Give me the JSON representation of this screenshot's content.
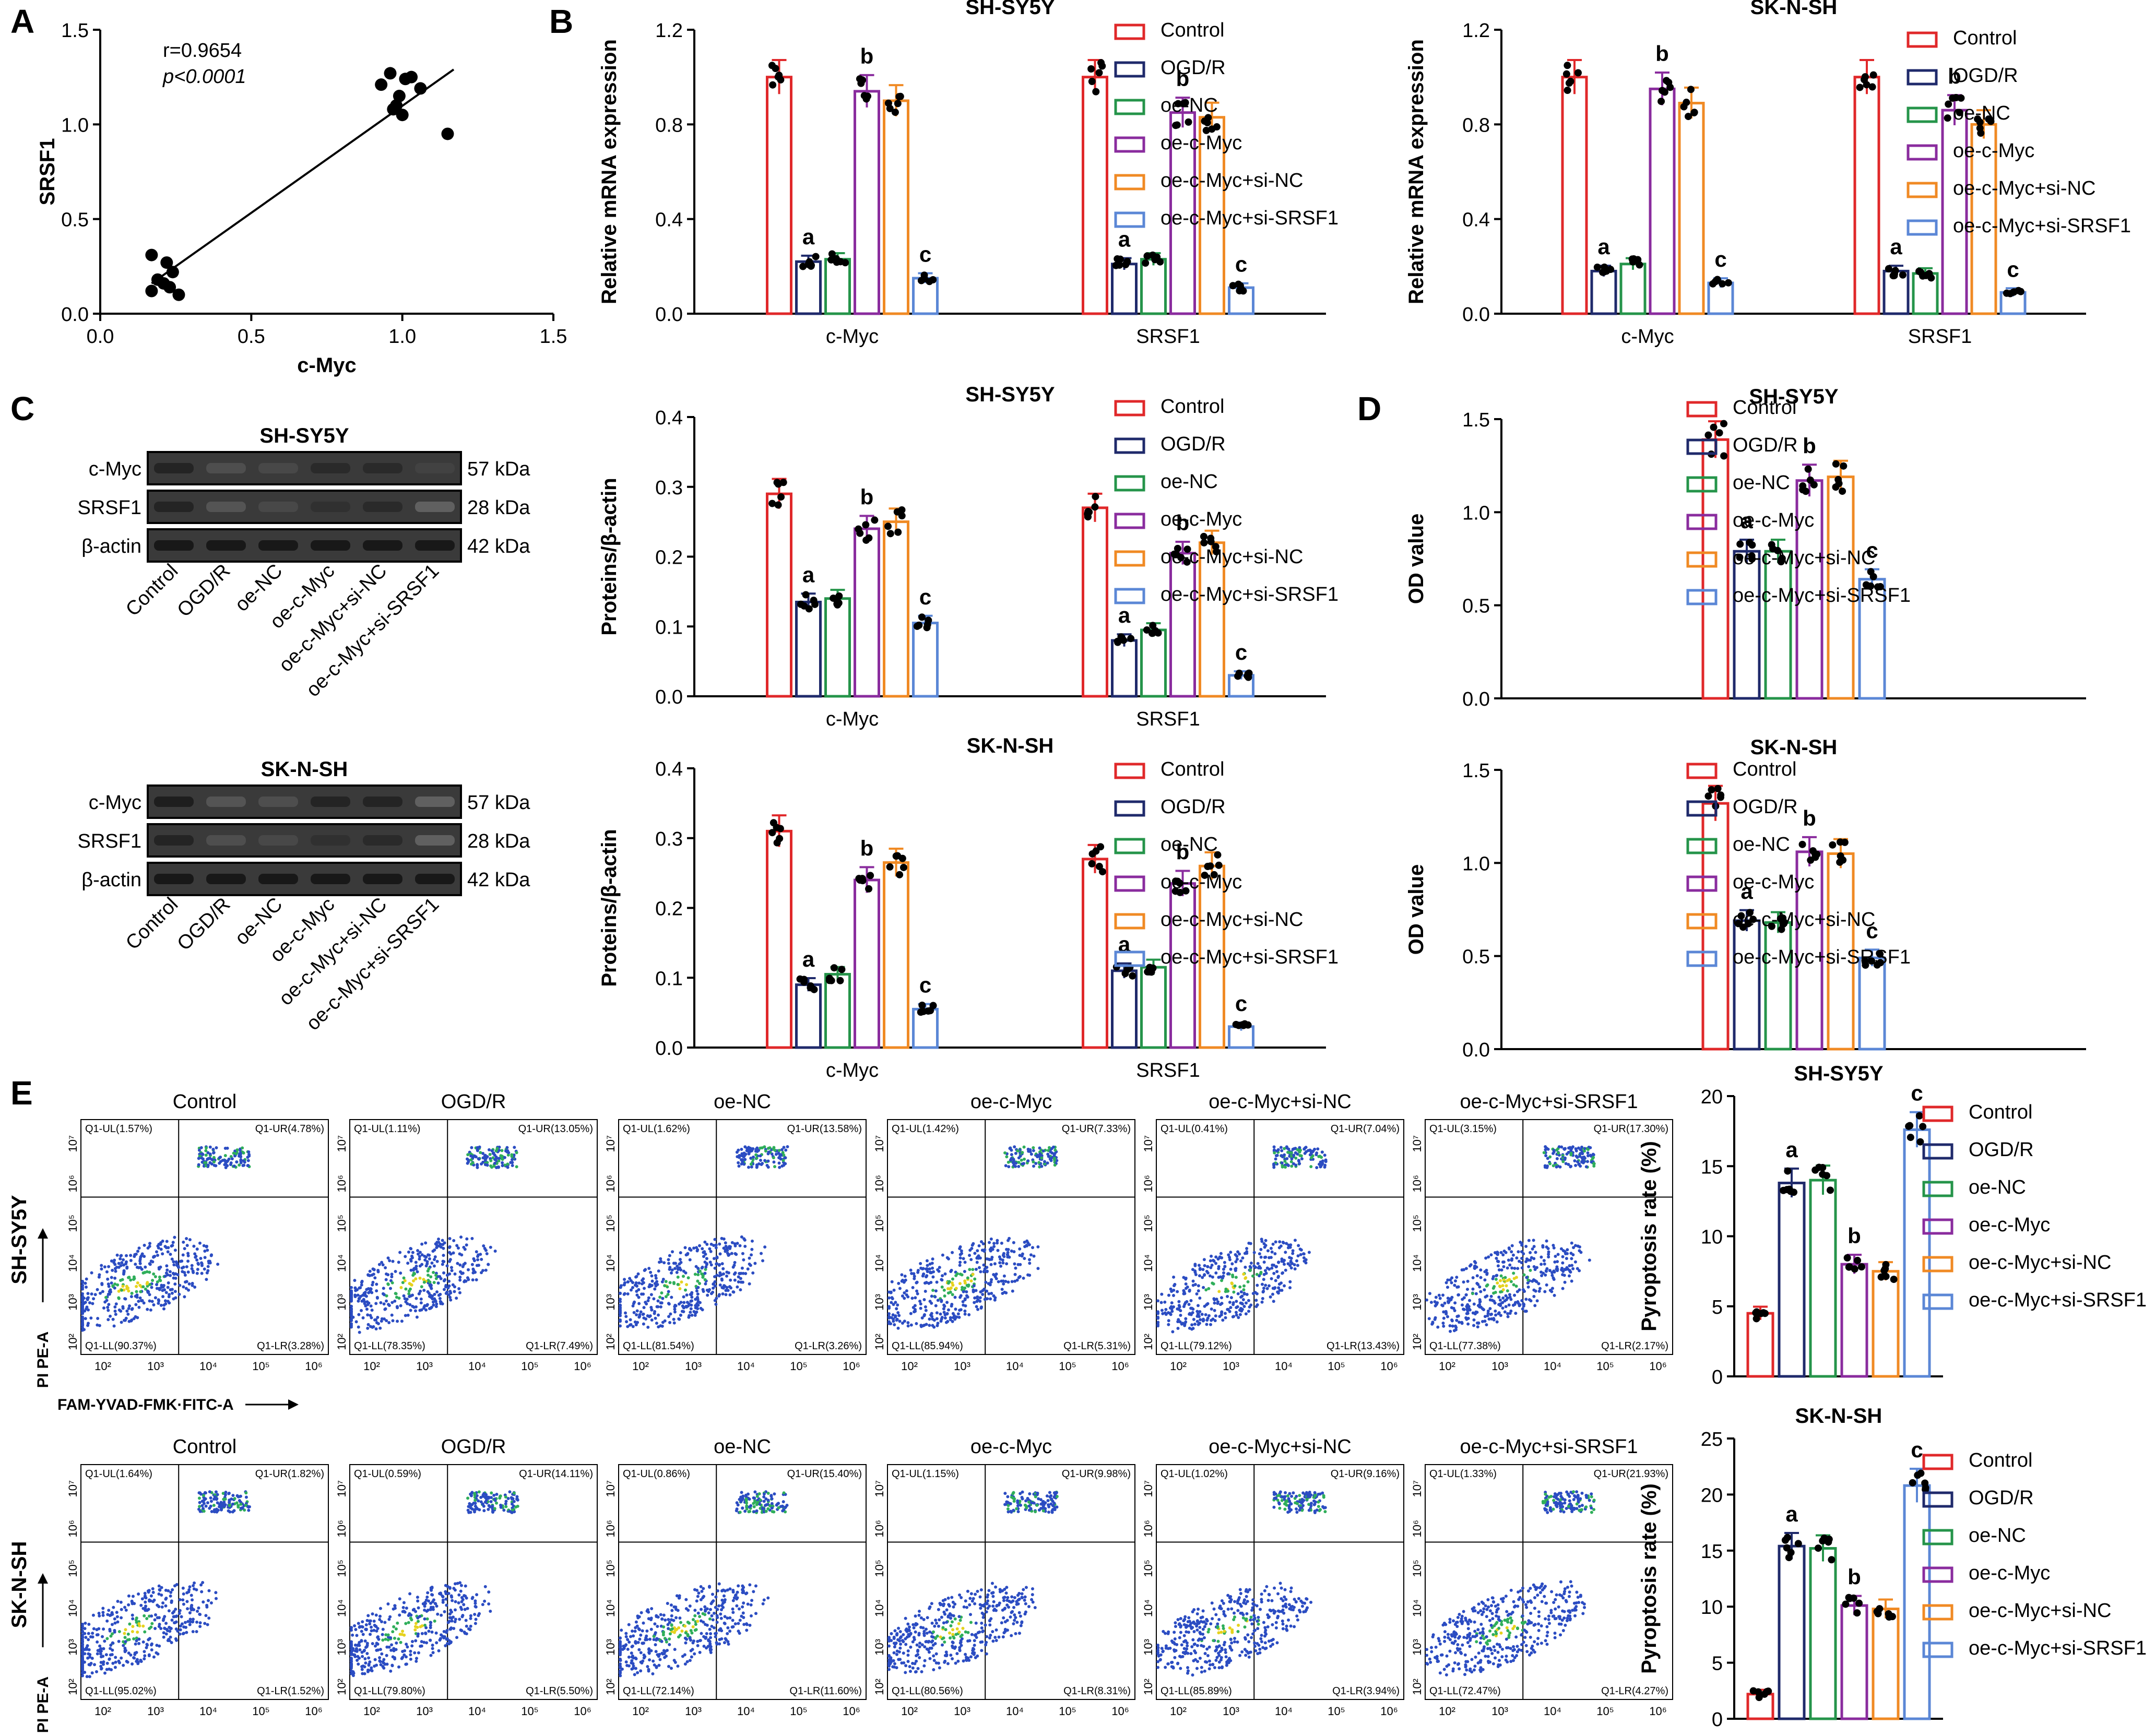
{
  "figure": {
    "group_names": [
      "Control",
      "OGD/R",
      "oe-NC",
      "oe-c-Myc",
      "oe-c-Myc+si-NC",
      "oe-c-Myc+si-SRSF1"
    ],
    "group_colors": [
      "#E0282A",
      "#1F2A6B",
      "#25944A",
      "#8A2C9E",
      "#F08A24",
      "#5B87D6"
    ]
  },
  "chart_data": [
    {
      "id": "A",
      "type": "scatter",
      "panel_letter": "A",
      "xlabel": "c-Myc",
      "ylabel": "SRSF1",
      "xlim": [
        0,
        1.5
      ],
      "ylim": [
        0,
        1.5
      ],
      "xticks": [
        "0.0",
        "0.5",
        "1.0",
        "1.5"
      ],
      "yticks": [
        "0.0",
        "0.5",
        "1.0",
        "1.5"
      ],
      "annotations": [
        "r=0.9654",
        "p<0.0001"
      ],
      "points": [
        [
          0.17,
          0.31
        ],
        [
          0.22,
          0.27
        ],
        [
          0.24,
          0.22
        ],
        [
          0.19,
          0.18
        ],
        [
          0.21,
          0.16
        ],
        [
          0.17,
          0.12
        ],
        [
          0.26,
          0.1
        ],
        [
          0.23,
          0.14
        ],
        [
          0.93,
          1.21
        ],
        [
          0.96,
          1.27
        ],
        [
          1.01,
          1.24
        ],
        [
          1.03,
          1.25
        ],
        [
          1.06,
          1.19
        ],
        [
          0.98,
          1.1
        ],
        [
          1.0,
          1.05
        ],
        [
          0.99,
          1.15
        ],
        [
          1.15,
          0.95
        ],
        [
          0.97,
          1.08
        ]
      ],
      "fit": [
        [
          0.17,
          0.16
        ],
        [
          1.17,
          1.29
        ]
      ]
    },
    {
      "id": "B1",
      "type": "bar",
      "panel_letter": "B",
      "title": "SH-SY5Y",
      "ylabel": "Relative mRNA expression",
      "ylim": [
        0,
        1.2
      ],
      "yticks": [
        "0.0",
        "0.4",
        "0.8",
        "1.2"
      ],
      "categories": [
        "c-Myc",
        "SRSF1"
      ],
      "values": [
        [
          1.0,
          0.22,
          0.23,
          0.94,
          0.9,
          0.15
        ],
        [
          1.0,
          0.21,
          0.23,
          0.85,
          0.83,
          0.11
        ]
      ],
      "letters": [
        [
          "",
          "a",
          "",
          "b",
          "",
          "c"
        ],
        [
          "",
          "a",
          "",
          "b",
          "",
          "c"
        ]
      ]
    },
    {
      "id": "B2",
      "type": "bar",
      "panel_letter": "",
      "title": "SK-N-SH",
      "ylabel": "Relative mRNA expression",
      "ylim": [
        0,
        1.2
      ],
      "yticks": [
        "0.0",
        "0.4",
        "0.8",
        "1.2"
      ],
      "categories": [
        "c-Myc",
        "SRSF1"
      ],
      "values": [
        [
          1.0,
          0.18,
          0.21,
          0.95,
          0.89,
          0.13
        ],
        [
          1.0,
          0.18,
          0.17,
          0.86,
          0.8,
          0.09
        ]
      ],
      "letters": [
        [
          "",
          "a",
          "",
          "b",
          "",
          "c"
        ],
        [
          "",
          "a",
          "",
          "b",
          "",
          "c"
        ]
      ]
    },
    {
      "id": "C1",
      "type": "bar",
      "panel_letter": "C",
      "title": "SH-SY5Y",
      "ylabel": "Proteins/β-actin",
      "ylim": [
        0,
        0.4
      ],
      "yticks": [
        "0.0",
        "0.1",
        "0.2",
        "0.3",
        "0.4"
      ],
      "categories": [
        "c-Myc",
        "SRSF1"
      ],
      "values": [
        [
          0.29,
          0.135,
          0.14,
          0.24,
          0.25,
          0.105
        ],
        [
          0.27,
          0.08,
          0.095,
          0.205,
          0.22,
          0.03
        ]
      ],
      "letters": [
        [
          "",
          "a",
          "",
          "b",
          "",
          "c"
        ],
        [
          "",
          "a",
          "",
          "b",
          "",
          "c"
        ]
      ]
    },
    {
      "id": "C2",
      "type": "bar",
      "panel_letter": "",
      "title": "SK-N-SH",
      "ylabel": "Proteins/β-actin",
      "ylim": [
        0,
        0.4
      ],
      "yticks": [
        "0.0",
        "0.1",
        "0.2",
        "0.3",
        "0.4"
      ],
      "categories": [
        "c-Myc",
        "SRSF1"
      ],
      "values": [
        [
          0.31,
          0.09,
          0.105,
          0.24,
          0.265,
          0.055
        ],
        [
          0.27,
          0.11,
          0.115,
          0.235,
          0.26,
          0.03
        ]
      ],
      "letters": [
        [
          "",
          "a",
          "",
          "b",
          "",
          "c"
        ],
        [
          "",
          "a",
          "",
          "b",
          "",
          "c"
        ]
      ]
    },
    {
      "id": "D1",
      "type": "bar",
      "panel_letter": "D",
      "title": "SH-SY5Y",
      "ylabel": "OD value",
      "ylim": [
        0,
        1.5
      ],
      "yticks": [
        "0.0",
        "0.5",
        "1.0",
        "1.5"
      ],
      "categories": [
        ""
      ],
      "values": [
        [
          1.39,
          0.79,
          0.79,
          1.17,
          1.19,
          0.64
        ]
      ],
      "letters": [
        [
          "",
          "a",
          "",
          "b",
          "",
          "c"
        ]
      ]
    },
    {
      "id": "D2",
      "type": "bar",
      "panel_letter": "",
      "title": "SK-N-SH",
      "ylabel": "OD value",
      "ylim": [
        0,
        1.5
      ],
      "yticks": [
        "0.0",
        "0.5",
        "1.0",
        "1.5"
      ],
      "categories": [
        ""
      ],
      "values": [
        [
          1.32,
          0.69,
          0.68,
          1.06,
          1.05,
          0.49
        ]
      ],
      "letters": [
        [
          "",
          "a",
          "",
          "b",
          "",
          "c"
        ]
      ]
    },
    {
      "id": "E1",
      "type": "bar",
      "panel_letter": "",
      "title": "SH-SY5Y",
      "ylabel": "Pyroptosis rate (%)",
      "ylim": [
        0,
        20
      ],
      "yticks": [
        "0",
        "5",
        "10",
        "15",
        "20"
      ],
      "categories": [
        ""
      ],
      "values": [
        [
          4.5,
          13.8,
          14.0,
          8.0,
          7.5,
          17.6
        ]
      ],
      "letters": [
        [
          "",
          "a",
          "",
          "b",
          "",
          "c"
        ]
      ]
    },
    {
      "id": "E2",
      "type": "bar",
      "panel_letter": "",
      "title": "SK-N-SH",
      "ylabel": "Pyroptosis rate (%)",
      "ylim": [
        0,
        25
      ],
      "yticks": [
        "0",
        "5",
        "10",
        "15",
        "20",
        "25"
      ],
      "categories": [
        ""
      ],
      "values": [
        [
          2.2,
          15.4,
          15.2,
          10.1,
          9.8,
          20.8
        ]
      ],
      "letters": [
        [
          "",
          "a",
          "",
          "b",
          "",
          "c"
        ]
      ]
    }
  ],
  "western_blots": [
    {
      "title": "SH-SY5Y",
      "rows": [
        {
          "label": "c-Myc",
          "kda": "57 kDa",
          "intensity": [
            0.7,
            0.35,
            0.4,
            0.65,
            0.65,
            0.45
          ]
        },
        {
          "label": "SRSF1",
          "kda": "28 kDa",
          "intensity": [
            0.7,
            0.3,
            0.4,
            0.6,
            0.65,
            0.2
          ]
        },
        {
          "label": "β-actin",
          "kda": "42 kDa",
          "intensity": [
            0.8,
            0.8,
            0.8,
            0.8,
            0.8,
            0.8
          ]
        }
      ],
      "lane_labels": [
        "Control",
        "OGD/R",
        "oe-NC",
        "oe-c-Myc",
        "oe-c-Myc+si-NC",
        "oe-c-Myc+si-SRSF1"
      ]
    },
    {
      "title": "SK-N-SH",
      "rows": [
        {
          "label": "c-Myc",
          "kda": "57 kDa",
          "intensity": [
            0.75,
            0.3,
            0.35,
            0.7,
            0.7,
            0.2
          ]
        },
        {
          "label": "SRSF1",
          "kda": "28 kDa",
          "intensity": [
            0.7,
            0.35,
            0.4,
            0.6,
            0.65,
            0.2
          ]
        },
        {
          "label": "β-actin",
          "kda": "42 kDa",
          "intensity": [
            0.8,
            0.8,
            0.8,
            0.8,
            0.8,
            0.8
          ]
        }
      ],
      "lane_labels": [
        "Control",
        "OGD/R",
        "oe-NC",
        "oe-c-Myc",
        "oe-c-Myc+si-NC",
        "oe-c-Myc+si-SRSF1"
      ]
    }
  ],
  "flow_cytometry": {
    "panel_letter": "E",
    "ylabel": "PI PE-A",
    "xlabel": "FAM-YVAD-FMK·FITC-A",
    "xtick_labels": [
      "10²",
      "10³",
      "10⁴",
      "10⁵",
      "10⁶"
    ],
    "ytick_labels": [
      "10²",
      "10³",
      "10⁴",
      "10⁵",
      "10⁶",
      "10⁷"
    ],
    "rows": [
      {
        "cell_line": "SH-SY5Y",
        "plots": [
          {
            "title": "Control",
            "ul": "Q1-UL(1.57%)",
            "ur": "Q1-UR(4.78%)",
            "ll": "Q1-LL(90.37%)",
            "lr": "Q1-LR(3.28%)"
          },
          {
            "title": "OGD/R",
            "ul": "Q1-UL(1.11%)",
            "ur": "Q1-UR(13.05%)",
            "ll": "Q1-LL(78.35%)",
            "lr": "Q1-LR(7.49%)"
          },
          {
            "title": "oe-NC",
            "ul": "Q1-UL(1.62%)",
            "ur": "Q1-UR(13.58%)",
            "ll": "Q1-LL(81.54%)",
            "lr": "Q1-LR(3.26%)"
          },
          {
            "title": "oe-c-Myc",
            "ul": "Q1-UL(1.42%)",
            "ur": "Q1-UR(7.33%)",
            "ll": "Q1-LL(85.94%)",
            "lr": "Q1-LR(5.31%)"
          },
          {
            "title": "oe-c-Myc+si-NC",
            "ul": "Q1-UL(0.41%)",
            "ur": "Q1-UR(7.04%)",
            "ll": "Q1-LL(79.12%)",
            "lr": "Q1-LR(13.43%)"
          },
          {
            "title": "oe-c-Myc+si-SRSF1",
            "ul": "Q1-UL(3.15%)",
            "ur": "Q1-UR(17.30%)",
            "ll": "Q1-LL(77.38%)",
            "lr": "Q1-LR(2.17%)"
          }
        ]
      },
      {
        "cell_line": "SK-N-SH",
        "plots": [
          {
            "title": "Control",
            "ul": "Q1-UL(1.64%)",
            "ur": "Q1-UR(1.82%)",
            "ll": "Q1-LL(95.02%)",
            "lr": "Q1-LR(1.52%)"
          },
          {
            "title": "OGD/R",
            "ul": "Q1-UL(0.59%)",
            "ur": "Q1-UR(14.11%)",
            "ll": "Q1-LL(79.80%)",
            "lr": "Q1-LR(5.50%)"
          },
          {
            "title": "oe-NC",
            "ul": "Q1-UL(0.86%)",
            "ur": "Q1-UR(15.40%)",
            "ll": "Q1-LL(72.14%)",
            "lr": "Q1-LR(11.60%)"
          },
          {
            "title": "oe-c-Myc",
            "ul": "Q1-UL(1.15%)",
            "ur": "Q1-UR(9.98%)",
            "ll": "Q1-LL(80.56%)",
            "lr": "Q1-LR(8.31%)"
          },
          {
            "title": "oe-c-Myc+si-NC",
            "ul": "Q1-UL(1.02%)",
            "ur": "Q1-UR(9.16%)",
            "ll": "Q1-LL(85.89%)",
            "lr": "Q1-LR(3.94%)"
          },
          {
            "title": "oe-c-Myc+si-SRSF1",
            "ul": "Q1-UL(1.33%)",
            "ur": "Q1-UR(21.93%)",
            "ll": "Q1-LL(72.47%)",
            "lr": "Q1-LR(4.27%)"
          }
        ]
      }
    ]
  }
}
